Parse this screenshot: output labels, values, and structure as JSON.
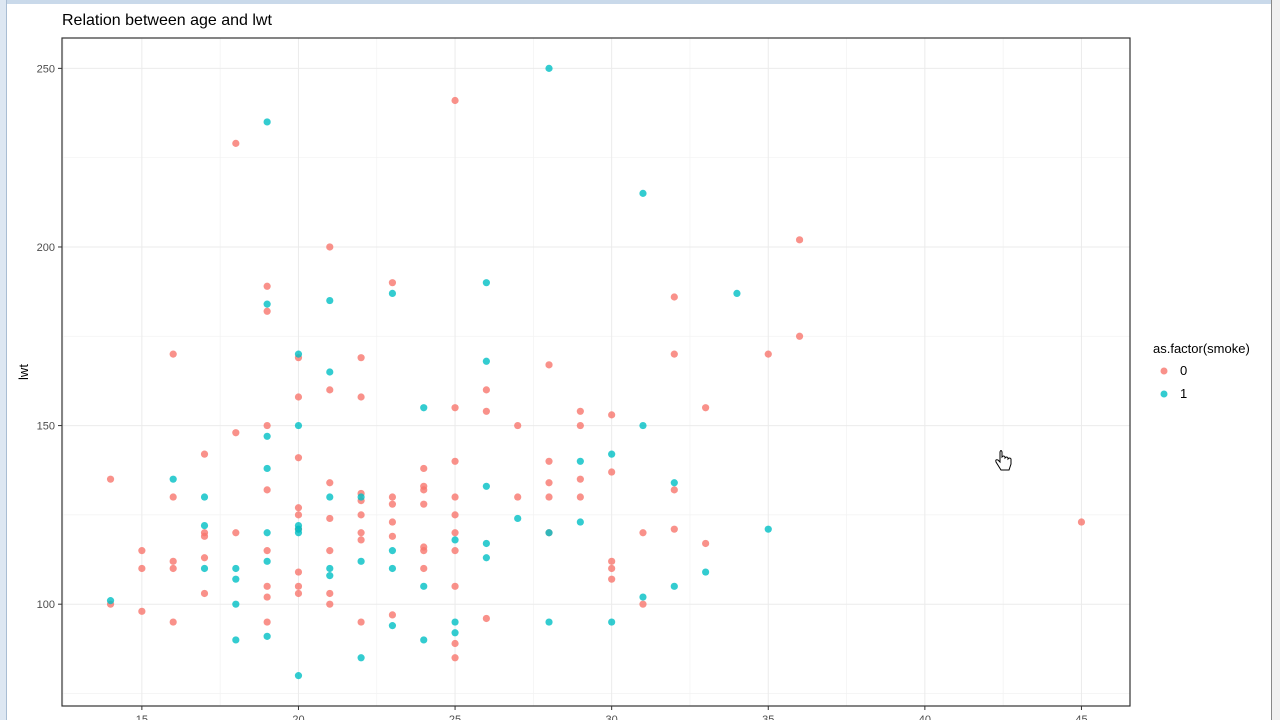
{
  "chart_data": {
    "type": "scatter",
    "title": "Relation between age and lwt",
    "xlabel": "",
    "ylabel": "lwt",
    "xlim": [
      12.45,
      46.55
    ],
    "ylim": [
      71.5,
      258.5
    ],
    "x_ticks": [
      15,
      20,
      25,
      30,
      35,
      40,
      45
    ],
    "y_ticks": [
      100,
      150,
      200,
      250
    ],
    "grid": true,
    "legend": {
      "title": "as.factor(smoke)",
      "placement": "right"
    },
    "series": [
      {
        "name": "0",
        "color": "#F8766D",
        "points": [
          [
            14,
            135
          ],
          [
            14,
            100
          ],
          [
            15,
            115
          ],
          [
            15,
            110
          ],
          [
            15,
            98
          ],
          [
            16,
            170
          ],
          [
            16,
            130
          ],
          [
            16,
            112
          ],
          [
            16,
            110
          ],
          [
            16,
            95
          ],
          [
            17,
            142
          ],
          [
            17,
            120
          ],
          [
            17,
            119
          ],
          [
            17,
            113
          ],
          [
            17,
            103
          ],
          [
            18,
            229
          ],
          [
            18,
            148
          ],
          [
            18,
            120
          ],
          [
            19,
            189
          ],
          [
            19,
            182
          ],
          [
            19,
            150
          ],
          [
            19,
            132
          ],
          [
            19,
            115
          ],
          [
            19,
            105
          ],
          [
            19,
            102
          ],
          [
            19,
            95
          ],
          [
            20,
            169
          ],
          [
            20,
            158
          ],
          [
            20,
            141
          ],
          [
            20,
            127
          ],
          [
            20,
            125
          ],
          [
            20,
            121
          ],
          [
            20,
            109
          ],
          [
            20,
            105
          ],
          [
            20,
            103
          ],
          [
            21,
            200
          ],
          [
            21,
            160
          ],
          [
            21,
            134
          ],
          [
            21,
            124
          ],
          [
            21,
            115
          ],
          [
            21,
            103
          ],
          [
            21,
            100
          ],
          [
            22,
            169
          ],
          [
            22,
            158
          ],
          [
            22,
            131
          ],
          [
            22,
            129
          ],
          [
            22,
            125
          ],
          [
            22,
            120
          ],
          [
            22,
            118
          ],
          [
            22,
            95
          ],
          [
            23,
            190
          ],
          [
            23,
            130
          ],
          [
            23,
            128
          ],
          [
            23,
            123
          ],
          [
            23,
            119
          ],
          [
            23,
            97
          ],
          [
            24,
            138
          ],
          [
            24,
            133
          ],
          [
            24,
            132
          ],
          [
            24,
            128
          ],
          [
            24,
            116
          ],
          [
            24,
            115
          ],
          [
            24,
            110
          ],
          [
            25,
            241
          ],
          [
            25,
            155
          ],
          [
            25,
            140
          ],
          [
            25,
            130
          ],
          [
            25,
            125
          ],
          [
            25,
            120
          ],
          [
            25,
            115
          ],
          [
            25,
            105
          ],
          [
            25,
            89
          ],
          [
            25,
            85
          ],
          [
            26,
            160
          ],
          [
            26,
            154
          ],
          [
            26,
            96
          ],
          [
            27,
            150
          ],
          [
            27,
            130
          ],
          [
            28,
            167
          ],
          [
            28,
            140
          ],
          [
            28,
            134
          ],
          [
            28,
            130
          ],
          [
            28,
            120
          ],
          [
            29,
            154
          ],
          [
            29,
            150
          ],
          [
            29,
            135
          ],
          [
            29,
            130
          ],
          [
            30,
            153
          ],
          [
            30,
            137
          ],
          [
            30,
            112
          ],
          [
            30,
            110
          ],
          [
            30,
            107
          ],
          [
            31,
            120
          ],
          [
            31,
            100
          ],
          [
            32,
            186
          ],
          [
            32,
            170
          ],
          [
            32,
            132
          ],
          [
            32,
            121
          ],
          [
            33,
            155
          ],
          [
            33,
            117
          ],
          [
            35,
            170
          ],
          [
            36,
            202
          ],
          [
            36,
            175
          ],
          [
            45,
            123
          ]
        ]
      },
      {
        "name": "1",
        "color": "#00BFC4",
        "points": [
          [
            14,
            101
          ],
          [
            16,
            135
          ],
          [
            17,
            130
          ],
          [
            17,
            122
          ],
          [
            17,
            110
          ],
          [
            18,
            110
          ],
          [
            18,
            107
          ],
          [
            18,
            100
          ],
          [
            18,
            90
          ],
          [
            19,
            235
          ],
          [
            19,
            184
          ],
          [
            19,
            147
          ],
          [
            19,
            138
          ],
          [
            19,
            120
          ],
          [
            19,
            112
          ],
          [
            19,
            91
          ],
          [
            20,
            170
          ],
          [
            20,
            150
          ],
          [
            20,
            122
          ],
          [
            20,
            121
          ],
          [
            20,
            120
          ],
          [
            20,
            80
          ],
          [
            21,
            185
          ],
          [
            21,
            165
          ],
          [
            21,
            130
          ],
          [
            21,
            110
          ],
          [
            21,
            108
          ],
          [
            22,
            130
          ],
          [
            22,
            112
          ],
          [
            22,
            85
          ],
          [
            23,
            187
          ],
          [
            23,
            115
          ],
          [
            23,
            110
          ],
          [
            23,
            94
          ],
          [
            24,
            155
          ],
          [
            24,
            105
          ],
          [
            24,
            90
          ],
          [
            25,
            118
          ],
          [
            25,
            95
          ],
          [
            25,
            92
          ],
          [
            26,
            190
          ],
          [
            26,
            168
          ],
          [
            26,
            133
          ],
          [
            26,
            117
          ],
          [
            26,
            113
          ],
          [
            27,
            124
          ],
          [
            28,
            250
          ],
          [
            28,
            120
          ],
          [
            28,
            95
          ],
          [
            29,
            140
          ],
          [
            29,
            123
          ],
          [
            30,
            142
          ],
          [
            30,
            95
          ],
          [
            31,
            215
          ],
          [
            31,
            150
          ],
          [
            31,
            102
          ],
          [
            32,
            134
          ],
          [
            32,
            105
          ],
          [
            33,
            109
          ],
          [
            34,
            187
          ],
          [
            35,
            121
          ]
        ]
      }
    ]
  },
  "cursor_icon": "hand-pointer-icon"
}
